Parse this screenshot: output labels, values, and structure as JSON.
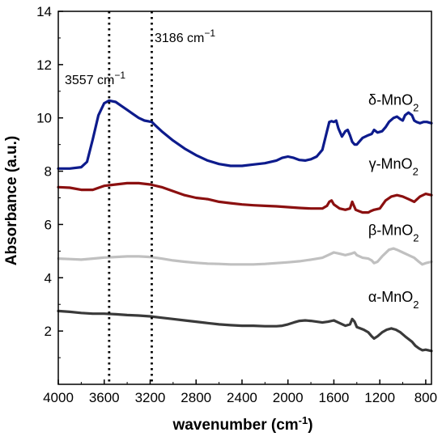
{
  "chart_data": {
    "type": "line",
    "xlabel": "wavenumber (cm",
    "xlabel_sup": "-1",
    "xlabel_end": ")",
    "ylabel": "Absorbance (a.u.)",
    "xlim": [
      4000,
      750
    ],
    "ylim": [
      0,
      14
    ],
    "x_reversed": true,
    "x_ticks": [
      "4000",
      "3600",
      "3200",
      "2800",
      "2400",
      "2000",
      "1600",
      "1200",
      "800"
    ],
    "x_tick_values": [
      4000,
      3600,
      3200,
      2800,
      2400,
      2000,
      1600,
      1200,
      800
    ],
    "y_ticks": [
      "2",
      "4",
      "6",
      "8",
      "10",
      "12",
      "14"
    ],
    "y_tick_values": [
      2,
      4,
      6,
      8,
      10,
      12,
      14
    ],
    "grid": false,
    "annotations": [
      {
        "label": "3557 cm",
        "sup": "−1",
        "x": 3557
      },
      {
        "label": "3186 cm",
        "sup": "−1",
        "x": 3186
      }
    ],
    "series": [
      {
        "name": "δ-MnO",
        "sub": "2",
        "color": "#0d1b8c",
        "label_x": 1080,
        "label_y": 10.5,
        "points": [
          [
            4000,
            8.1
          ],
          [
            3900,
            8.1
          ],
          [
            3800,
            8.15
          ],
          [
            3750,
            8.35
          ],
          [
            3700,
            9.2
          ],
          [
            3650,
            10.1
          ],
          [
            3600,
            10.55
          ],
          [
            3557,
            10.65
          ],
          [
            3500,
            10.6
          ],
          [
            3450,
            10.45
          ],
          [
            3400,
            10.3
          ],
          [
            3350,
            10.15
          ],
          [
            3300,
            10.0
          ],
          [
            3250,
            9.9
          ],
          [
            3186,
            9.85
          ],
          [
            3150,
            9.7
          ],
          [
            3100,
            9.5
          ],
          [
            3000,
            9.15
          ],
          [
            2900,
            8.85
          ],
          [
            2800,
            8.6
          ],
          [
            2700,
            8.4
          ],
          [
            2600,
            8.27
          ],
          [
            2500,
            8.2
          ],
          [
            2400,
            8.2
          ],
          [
            2300,
            8.25
          ],
          [
            2200,
            8.3
          ],
          [
            2100,
            8.4
          ],
          [
            2050,
            8.5
          ],
          [
            2000,
            8.55
          ],
          [
            1950,
            8.5
          ],
          [
            1900,
            8.42
          ],
          [
            1850,
            8.4
          ],
          [
            1800,
            8.45
          ],
          [
            1750,
            8.55
          ],
          [
            1700,
            8.8
          ],
          [
            1660,
            9.5
          ],
          [
            1640,
            9.85
          ],
          [
            1620,
            9.88
          ],
          [
            1600,
            9.85
          ],
          [
            1580,
            9.9
          ],
          [
            1560,
            9.6
          ],
          [
            1530,
            9.3
          ],
          [
            1500,
            9.5
          ],
          [
            1480,
            9.55
          ],
          [
            1460,
            9.35
          ],
          [
            1440,
            9.1
          ],
          [
            1420,
            9.0
          ],
          [
            1400,
            9.0
          ],
          [
            1380,
            9.1
          ],
          [
            1350,
            9.25
          ],
          [
            1300,
            9.35
          ],
          [
            1270,
            9.4
          ],
          [
            1250,
            9.55
          ],
          [
            1220,
            9.45
          ],
          [
            1180,
            9.5
          ],
          [
            1150,
            9.65
          ],
          [
            1120,
            9.85
          ],
          [
            1080,
            10.0
          ],
          [
            1050,
            10.05
          ],
          [
            1020,
            9.95
          ],
          [
            1000,
            9.9
          ],
          [
            980,
            10.1
          ],
          [
            950,
            10.2
          ],
          [
            920,
            10.1
          ],
          [
            900,
            9.9
          ],
          [
            880,
            9.85
          ],
          [
            850,
            9.8
          ],
          [
            820,
            9.85
          ],
          [
            790,
            9.85
          ],
          [
            750,
            9.8
          ]
        ]
      },
      {
        "name": "γ-MnO",
        "sub": "2",
        "color": "#8b1010",
        "label_x": 1080,
        "label_y": 8.1,
        "points": [
          [
            4000,
            7.4
          ],
          [
            3900,
            7.38
          ],
          [
            3800,
            7.3
          ],
          [
            3700,
            7.3
          ],
          [
            3600,
            7.45
          ],
          [
            3500,
            7.5
          ],
          [
            3400,
            7.55
          ],
          [
            3300,
            7.55
          ],
          [
            3200,
            7.5
          ],
          [
            3100,
            7.4
          ],
          [
            3000,
            7.25
          ],
          [
            2900,
            7.1
          ],
          [
            2800,
            7.0
          ],
          [
            2700,
            6.95
          ],
          [
            2600,
            6.85
          ],
          [
            2500,
            6.8
          ],
          [
            2400,
            6.75
          ],
          [
            2300,
            6.72
          ],
          [
            2200,
            6.7
          ],
          [
            2100,
            6.68
          ],
          [
            2000,
            6.65
          ],
          [
            1900,
            6.62
          ],
          [
            1800,
            6.6
          ],
          [
            1700,
            6.6
          ],
          [
            1660,
            6.7
          ],
          [
            1640,
            6.85
          ],
          [
            1620,
            6.9
          ],
          [
            1600,
            6.75
          ],
          [
            1550,
            6.6
          ],
          [
            1500,
            6.55
          ],
          [
            1460,
            6.6
          ],
          [
            1440,
            6.85
          ],
          [
            1430,
            6.75
          ],
          [
            1410,
            6.55
          ],
          [
            1380,
            6.5
          ],
          [
            1350,
            6.45
          ],
          [
            1300,
            6.45
          ],
          [
            1280,
            6.5
          ],
          [
            1250,
            6.55
          ],
          [
            1200,
            6.6
          ],
          [
            1150,
            6.9
          ],
          [
            1100,
            7.05
          ],
          [
            1050,
            7.1
          ],
          [
            1000,
            7.05
          ],
          [
            950,
            6.95
          ],
          [
            900,
            6.85
          ],
          [
            850,
            7.05
          ],
          [
            800,
            7.15
          ],
          [
            750,
            7.1
          ]
        ]
      },
      {
        "name": "β-MnO",
        "sub": "2",
        "color": "#c0c0c0",
        "label_x": 1080,
        "label_y": 5.6,
        "points": [
          [
            4000,
            4.72
          ],
          [
            3900,
            4.7
          ],
          [
            3800,
            4.68
          ],
          [
            3700,
            4.72
          ],
          [
            3600,
            4.76
          ],
          [
            3500,
            4.78
          ],
          [
            3400,
            4.8
          ],
          [
            3300,
            4.8
          ],
          [
            3200,
            4.78
          ],
          [
            3100,
            4.72
          ],
          [
            3000,
            4.65
          ],
          [
            2900,
            4.6
          ],
          [
            2800,
            4.56
          ],
          [
            2700,
            4.53
          ],
          [
            2600,
            4.52
          ],
          [
            2500,
            4.5
          ],
          [
            2400,
            4.5
          ],
          [
            2300,
            4.5
          ],
          [
            2200,
            4.52
          ],
          [
            2100,
            4.55
          ],
          [
            2000,
            4.58
          ],
          [
            1900,
            4.62
          ],
          [
            1800,
            4.68
          ],
          [
            1700,
            4.75
          ],
          [
            1650,
            4.85
          ],
          [
            1600,
            4.95
          ],
          [
            1550,
            4.9
          ],
          [
            1500,
            4.85
          ],
          [
            1450,
            4.9
          ],
          [
            1420,
            4.95
          ],
          [
            1400,
            4.85
          ],
          [
            1350,
            4.75
          ],
          [
            1300,
            4.72
          ],
          [
            1270,
            4.65
          ],
          [
            1250,
            4.55
          ],
          [
            1220,
            4.6
          ],
          [
            1180,
            4.8
          ],
          [
            1120,
            5.05
          ],
          [
            1080,
            5.1
          ],
          [
            1050,
            5.05
          ],
          [
            1000,
            4.95
          ],
          [
            950,
            4.85
          ],
          [
            900,
            4.75
          ],
          [
            860,
            4.6
          ],
          [
            830,
            4.5
          ],
          [
            800,
            4.55
          ],
          [
            750,
            4.6
          ]
        ]
      },
      {
        "name": "α-MnO",
        "sub": "2",
        "color": "#3a3a3a",
        "label_x": 1080,
        "label_y": 3.1,
        "points": [
          [
            4000,
            2.75
          ],
          [
            3900,
            2.72
          ],
          [
            3800,
            2.68
          ],
          [
            3700,
            2.65
          ],
          [
            3600,
            2.65
          ],
          [
            3500,
            2.63
          ],
          [
            3400,
            2.6
          ],
          [
            3300,
            2.58
          ],
          [
            3200,
            2.55
          ],
          [
            3100,
            2.5
          ],
          [
            3000,
            2.45
          ],
          [
            2900,
            2.4
          ],
          [
            2800,
            2.35
          ],
          [
            2700,
            2.3
          ],
          [
            2600,
            2.25
          ],
          [
            2500,
            2.22
          ],
          [
            2400,
            2.2
          ],
          [
            2300,
            2.2
          ],
          [
            2200,
            2.18
          ],
          [
            2100,
            2.18
          ],
          [
            2050,
            2.2
          ],
          [
            2000,
            2.25
          ],
          [
            1950,
            2.32
          ],
          [
            1900,
            2.38
          ],
          [
            1850,
            2.4
          ],
          [
            1800,
            2.38
          ],
          [
            1750,
            2.35
          ],
          [
            1700,
            2.32
          ],
          [
            1650,
            2.35
          ],
          [
            1600,
            2.4
          ],
          [
            1550,
            2.3
          ],
          [
            1500,
            2.2
          ],
          [
            1460,
            2.25
          ],
          [
            1440,
            2.45
          ],
          [
            1420,
            2.35
          ],
          [
            1400,
            2.15
          ],
          [
            1370,
            2.1
          ],
          [
            1340,
            2.05
          ],
          [
            1300,
            1.95
          ],
          [
            1270,
            1.8
          ],
          [
            1250,
            1.72
          ],
          [
            1220,
            1.8
          ],
          [
            1180,
            1.95
          ],
          [
            1140,
            2.05
          ],
          [
            1100,
            2.1
          ],
          [
            1060,
            2.05
          ],
          [
            1020,
            1.95
          ],
          [
            980,
            1.8
          ],
          [
            950,
            1.7
          ],
          [
            920,
            1.6
          ],
          [
            890,
            1.45
          ],
          [
            860,
            1.35
          ],
          [
            830,
            1.28
          ],
          [
            800,
            1.3
          ],
          [
            750,
            1.25
          ]
        ]
      }
    ]
  }
}
